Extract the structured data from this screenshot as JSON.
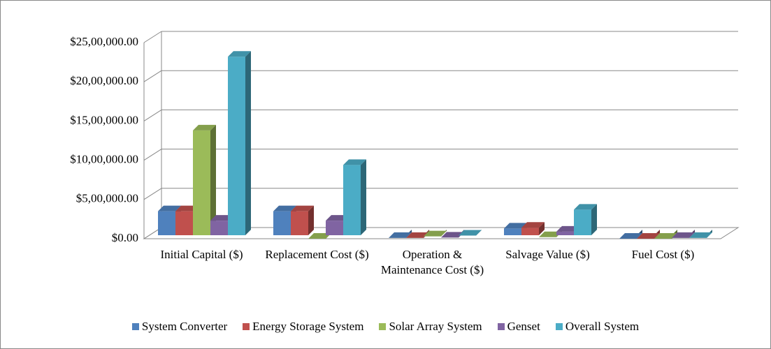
{
  "chart_data": {
    "type": "bar3d",
    "categories": [
      "Initial Capital ($)",
      "Replacement Cost ($)",
      "Operation & Maintenance Cost ($)",
      "Salvage Value ($)",
      "Fuel Cost ($)"
    ],
    "series": [
      {
        "name": "System Converter",
        "color": "#4f81bd",
        "values": [
          350000,
          350000,
          10000,
          130000,
          0
        ]
      },
      {
        "name": "Energy Storage System",
        "color": "#c0504d",
        "values": [
          350000,
          350000,
          10000,
          140000,
          0
        ]
      },
      {
        "name": "Solar Array System",
        "color": "#9bbb59",
        "values": [
          1380000,
          0,
          30000,
          20000,
          0
        ]
      },
      {
        "name": "Genset",
        "color": "#8064a2",
        "values": [
          230000,
          230000,
          15000,
          90000,
          10000
        ]
      },
      {
        "name": "Overall System",
        "color": "#4bacc6",
        "values": [
          2320000,
          940000,
          40000,
          370000,
          10000
        ]
      }
    ],
    "ylim": [
      0,
      2500000
    ],
    "yticks": [
      {
        "value": 0,
        "label": "$0.00"
      },
      {
        "value": 500000,
        "label": "$5,00,000.00"
      },
      {
        "value": 1000000,
        "label": "$10,00,000.00"
      },
      {
        "value": 1500000,
        "label": "$15,00,000.00"
      },
      {
        "value": 2000000,
        "label": "$20,00,000.00"
      },
      {
        "value": 2500000,
        "label": "$25,00,000.00"
      }
    ],
    "grid": true,
    "legend": "bottom"
  }
}
